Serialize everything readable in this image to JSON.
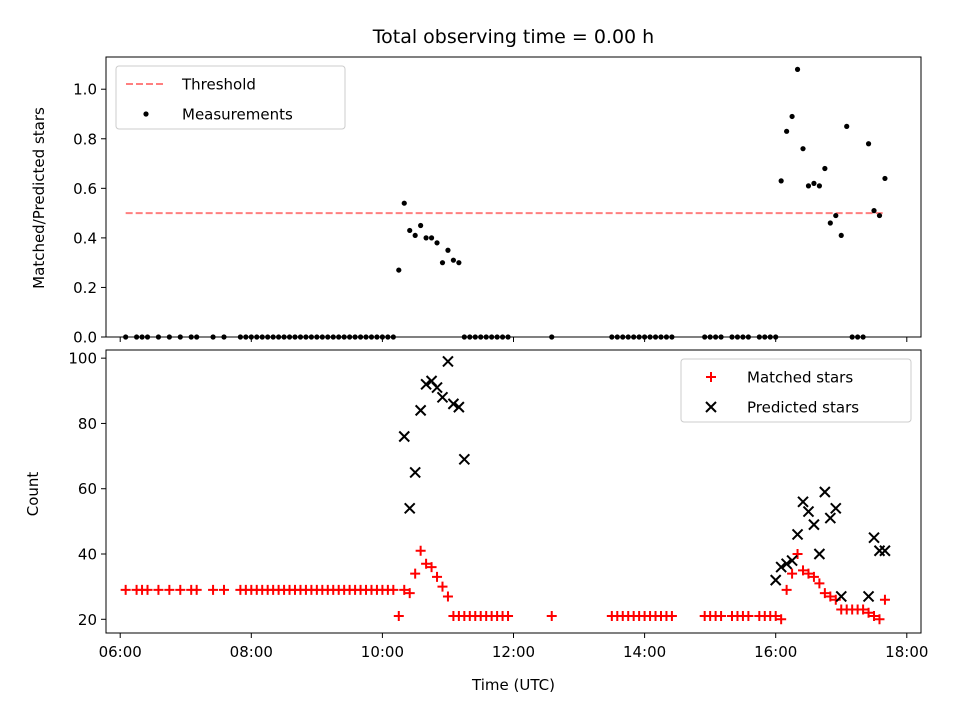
{
  "chart_data": [
    {
      "type": "line",
      "title": "Total observing time = 0.00 h",
      "xlabel": "",
      "ylabel": "Matched/Predicted stars",
      "xlim": [
        "05:47",
        "18:13"
      ],
      "ylim": [
        0,
        1.13
      ],
      "yticks": [
        0.0,
        0.2,
        0.4,
        0.6,
        0.8,
        1.0
      ],
      "ytick_labels": [
        "0.0",
        "0.2",
        "0.4",
        "0.6",
        "0.8",
        "1.0"
      ],
      "xticks": [
        "06:00",
        "08:00",
        "10:00",
        "12:00",
        "14:00",
        "16:00",
        "18:00"
      ],
      "show_xtick_labels": false,
      "legend_position": "upper left",
      "series": [
        {
          "name": "Threshold",
          "style": "dashed-line",
          "color": "#ff7f7f",
          "x": [
            "06:05",
            "17:40"
          ],
          "y": [
            0.5,
            0.5
          ]
        },
        {
          "name": "Measurements",
          "style": "scatter-dot",
          "color": "#000000",
          "x": [
            "06:05",
            "06:15",
            "06:20",
            "06:25",
            "06:35",
            "06:45",
            "06:55",
            "07:05",
            "07:10",
            "07:25",
            "07:35",
            "07:50",
            "07:55",
            "08:00",
            "08:05",
            "08:10",
            "08:15",
            "08:20",
            "08:25",
            "08:30",
            "08:35",
            "08:40",
            "08:45",
            "08:50",
            "08:55",
            "09:00",
            "09:05",
            "09:10",
            "09:15",
            "09:20",
            "09:25",
            "09:30",
            "09:35",
            "09:40",
            "09:45",
            "09:50",
            "09:55",
            "10:00",
            "10:05",
            "10:10",
            "10:15",
            "10:20",
            "10:25",
            "10:30",
            "10:35",
            "10:40",
            "10:45",
            "10:50",
            "10:55",
            "11:00",
            "11:05",
            "11:10",
            "11:15",
            "11:20",
            "11:25",
            "11:30",
            "11:35",
            "11:40",
            "11:45",
            "11:50",
            "11:55",
            "12:35",
            "13:30",
            "13:35",
            "13:40",
            "13:45",
            "13:50",
            "13:55",
            "14:00",
            "14:05",
            "14:10",
            "14:15",
            "14:20",
            "14:25",
            "14:55",
            "15:00",
            "15:05",
            "15:10",
            "15:20",
            "15:25",
            "15:30",
            "15:35",
            "15:45",
            "15:50",
            "15:55",
            "16:00",
            "16:05",
            "16:10",
            "16:15",
            "16:20",
            "16:25",
            "16:30",
            "16:35",
            "16:40",
            "16:45",
            "16:50",
            "16:55",
            "17:00",
            "17:05",
            "17:10",
            "17:15",
            "17:20",
            "17:25",
            "17:30",
            "17:35",
            "17:40"
          ],
          "y": [
            0,
            0,
            0,
            0,
            0,
            0,
            0,
            0,
            0,
            0,
            0,
            0,
            0,
            0,
            0,
            0,
            0,
            0,
            0,
            0,
            0,
            0,
            0,
            0,
            0,
            0,
            0,
            0,
            0,
            0,
            0,
            0,
            0,
            0,
            0,
            0,
            0,
            0,
            0,
            0,
            0.27,
            0.54,
            0.43,
            0.41,
            0.45,
            0.4,
            0.4,
            0.38,
            0.3,
            0.35,
            0.31,
            0.3,
            0,
            0,
            0,
            0,
            0,
            0,
            0,
            0,
            0,
            0,
            0,
            0,
            0,
            0,
            0,
            0,
            0,
            0,
            0,
            0,
            0,
            0,
            0,
            0,
            0,
            0,
            0,
            0,
            0,
            0,
            0,
            0,
            0,
            0,
            0.63,
            0.83,
            0.89,
            1.08,
            0.76,
            0.61,
            0.62,
            0.61,
            0.68,
            0.46,
            0.49,
            0.41,
            0.85,
            0,
            0,
            0,
            0.78,
            0.51,
            0.49,
            0.64
          ]
        }
      ]
    },
    {
      "type": "scatter",
      "title": "",
      "xlabel": "Time (UTC)",
      "ylabel": "Count",
      "xlim": [
        "05:47",
        "18:13"
      ],
      "ylim": [
        15.8,
        102.5
      ],
      "yticks": [
        20,
        40,
        60,
        80,
        100
      ],
      "ytick_labels": [
        "20",
        "40",
        "60",
        "80",
        "100"
      ],
      "xticks": [
        "06:00",
        "08:00",
        "10:00",
        "12:00",
        "14:00",
        "16:00",
        "18:00"
      ],
      "xtick_labels": [
        "06:00",
        "08:00",
        "10:00",
        "12:00",
        "14:00",
        "16:00",
        "18:00"
      ],
      "legend_position": "upper right",
      "series": [
        {
          "name": "Matched stars",
          "marker": "plus",
          "color": "#ff0000",
          "x": [
            "06:05",
            "06:15",
            "06:20",
            "06:25",
            "06:35",
            "06:45",
            "06:55",
            "07:05",
            "07:10",
            "07:25",
            "07:35",
            "07:50",
            "07:55",
            "08:00",
            "08:05",
            "08:10",
            "08:15",
            "08:20",
            "08:25",
            "08:30",
            "08:35",
            "08:40",
            "08:45",
            "08:50",
            "08:55",
            "09:00",
            "09:05",
            "09:10",
            "09:15",
            "09:20",
            "09:25",
            "09:30",
            "09:35",
            "09:40",
            "09:45",
            "09:50",
            "09:55",
            "10:00",
            "10:05",
            "10:10",
            "10:15",
            "10:20",
            "10:25",
            "10:30",
            "10:35",
            "10:40",
            "10:45",
            "10:50",
            "10:55",
            "11:00",
            "11:05",
            "11:10",
            "11:15",
            "11:20",
            "11:25",
            "11:30",
            "11:35",
            "11:40",
            "11:45",
            "11:50",
            "11:55",
            "12:35",
            "13:30",
            "13:35",
            "13:40",
            "13:45",
            "13:50",
            "13:55",
            "14:00",
            "14:05",
            "14:10",
            "14:15",
            "14:20",
            "14:25",
            "14:55",
            "15:00",
            "15:05",
            "15:10",
            "15:20",
            "15:25",
            "15:30",
            "15:35",
            "15:45",
            "15:50",
            "15:55",
            "16:00",
            "16:05",
            "16:10",
            "16:15",
            "16:20",
            "16:25",
            "16:30",
            "16:35",
            "16:40",
            "16:45",
            "16:50",
            "16:55",
            "17:00",
            "17:05",
            "17:10",
            "17:15",
            "17:20",
            "17:25",
            "17:30",
            "17:35",
            "17:40"
          ],
          "y": [
            29,
            29,
            29,
            29,
            29,
            29,
            29,
            29,
            29,
            29,
            29,
            29,
            29,
            29,
            29,
            29,
            29,
            29,
            29,
            29,
            29,
            29,
            29,
            29,
            29,
            29,
            29,
            29,
            29,
            29,
            29,
            29,
            29,
            29,
            29,
            29,
            29,
            29,
            29,
            29,
            21,
            29,
            28,
            34,
            41,
            37,
            36,
            33,
            30,
            27,
            21,
            21,
            21,
            21,
            21,
            21,
            21,
            21,
            21,
            21,
            21,
            21,
            21,
            21,
            21,
            21,
            21,
            21,
            21,
            21,
            21,
            21,
            21,
            21,
            21,
            21,
            21,
            21,
            21,
            21,
            21,
            21,
            21,
            21,
            21,
            21,
            20,
            29,
            34,
            40,
            35,
            34,
            33,
            31,
            28,
            27,
            26,
            23,
            23,
            23,
            23,
            23,
            22,
            21,
            20,
            26
          ]
        },
        {
          "name": "Predicted stars",
          "marker": "x",
          "color": "#000000",
          "x": [
            "10:20",
            "10:25",
            "10:30",
            "10:35",
            "10:40",
            "10:45",
            "10:50",
            "10:55",
            "11:00",
            "11:05",
            "11:10",
            "11:15",
            "16:00",
            "16:05",
            "16:10",
            "16:15",
            "16:20",
            "16:25",
            "16:30",
            "16:35",
            "16:40",
            "16:45",
            "16:50",
            "16:55",
            "17:00",
            "17:25",
            "17:30",
            "17:35",
            "17:40"
          ],
          "y": [
            76,
            54,
            65,
            84,
            92,
            93,
            91,
            88,
            99,
            86,
            85,
            69,
            32,
            36,
            37,
            38,
            46,
            56,
            53,
            49,
            40,
            59,
            51,
            54,
            27,
            27,
            45,
            41,
            41
          ]
        }
      ]
    }
  ]
}
